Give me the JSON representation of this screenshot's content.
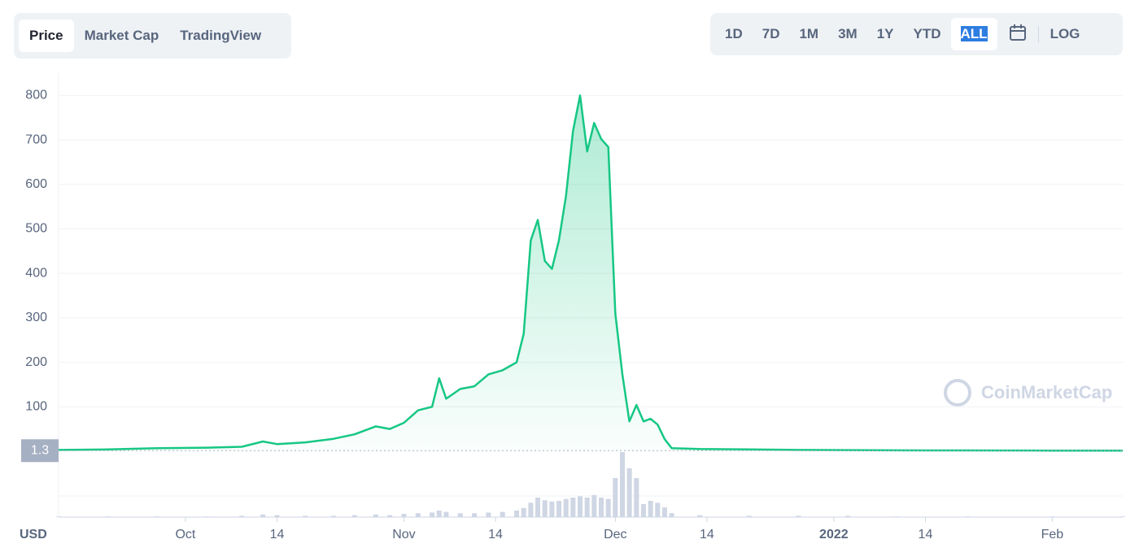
{
  "tabs": [
    "Price",
    "Market Cap",
    "TradingView"
  ],
  "ranges": [
    "1D",
    "7D",
    "1M",
    "3M",
    "1Y",
    "YTD",
    "ALL"
  ],
  "log_button": "LOG",
  "watermark": "CoinMarketCap",
  "chart_data": {
    "type": "line",
    "currency": "USD",
    "color": "#16c784",
    "grid": true,
    "x": [
      "2021-09-13",
      "2021-09-20",
      "2021-09-27",
      "2021-10-04",
      "2021-10-09",
      "2021-10-12",
      "2021-10-14",
      "2021-10-18",
      "2021-10-22",
      "2021-10-25",
      "2021-10-28",
      "2021-10-30",
      "2021-11-01",
      "2021-11-03",
      "2021-11-05",
      "2021-11-06",
      "2021-11-07",
      "2021-11-09",
      "2021-11-11",
      "2021-11-13",
      "2021-11-15",
      "2021-11-17",
      "2021-11-18",
      "2021-11-19",
      "2021-11-20",
      "2021-11-21",
      "2021-11-22",
      "2021-11-23",
      "2021-11-24",
      "2021-11-25",
      "2021-11-26",
      "2021-11-27",
      "2021-11-28",
      "2021-11-29",
      "2021-11-30",
      "2021-12-01",
      "2021-12-02",
      "2021-12-03",
      "2021-12-04",
      "2021-12-05",
      "2021-12-06",
      "2021-12-07",
      "2021-12-08",
      "2021-12-09",
      "2021-12-13",
      "2021-12-20",
      "2021-12-27",
      "2022-01-03",
      "2022-01-10",
      "2022-01-20",
      "2022-02-01",
      "2022-02-11"
    ],
    "series": [
      {
        "color": "#16c784",
        "values": [
          3,
          4,
          7,
          8,
          10,
          22,
          16,
          20,
          28,
          38,
          56,
          50,
          64,
          92,
          100,
          164,
          118,
          140,
          146,
          173,
          182,
          200,
          264,
          474,
          520,
          428,
          410,
          474,
          574,
          720,
          800,
          674,
          738,
          702,
          684,
          310,
          173,
          67,
          104,
          67,
          73,
          60,
          27,
          7,
          5,
          4,
          3,
          2.5,
          2,
          1.8,
          1.5,
          1.3
        ]
      },
      {
        "color": "#cfd6e4",
        "axis": "y2",
        "values": [
          1,
          1,
          1,
          1,
          2,
          4,
          3,
          2,
          2,
          3,
          4,
          3,
          5,
          6,
          7,
          10,
          8,
          6,
          6,
          7,
          8,
          10,
          14,
          22,
          30,
          26,
          24,
          25,
          28,
          30,
          32,
          30,
          34,
          30,
          28,
          60,
          100,
          75,
          60,
          20,
          25,
          22,
          15,
          6,
          3,
          2,
          2,
          2,
          1,
          1,
          1,
          1
        ]
      }
    ],
    "xlim": [
      "2021-09-13",
      "2022-02-11"
    ],
    "xticks": [
      {
        "value": "2021-10-01",
        "label": "Oct"
      },
      {
        "value": "2021-10-14",
        "label": "14"
      },
      {
        "value": "2021-11-01",
        "label": "Nov"
      },
      {
        "value": "2021-11-14",
        "label": "14"
      },
      {
        "value": "2021-12-01",
        "label": "Dec"
      },
      {
        "value": "2021-12-14",
        "label": "14"
      },
      {
        "value": "2022-01-01",
        "label": "2022"
      },
      {
        "value": "2022-01-14",
        "label": "14"
      },
      {
        "value": "2022-02-01",
        "label": "Feb"
      }
    ],
    "ylim": [
      0,
      850
    ],
    "yticks": [
      100,
      200,
      300,
      400,
      500,
      600,
      700,
      800
    ],
    "y2lim": [
      0,
      100
    ],
    "current_price": 1.3
  }
}
